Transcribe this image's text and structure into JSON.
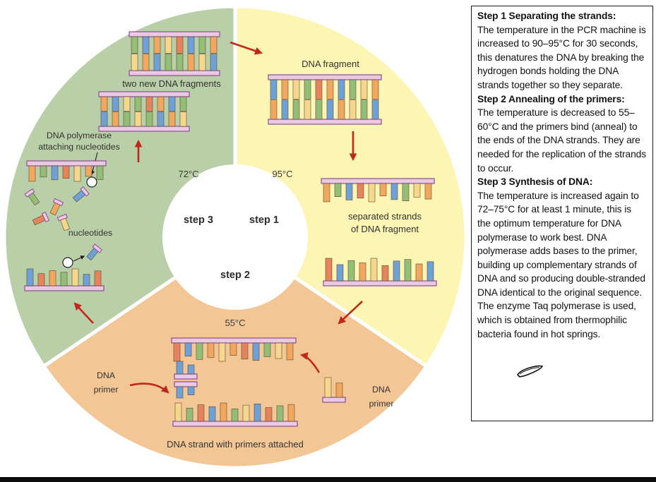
{
  "diagram": {
    "steps": {
      "step1": "step 1",
      "step2": "step 2",
      "step3": "step 3"
    },
    "temps": {
      "t95": "95°C",
      "t72": "72°C",
      "t55": "55°C"
    },
    "labels": {
      "dna_fragment": "DNA fragment",
      "separated_line1": "separated strands",
      "separated_line2": "of DNA fragment",
      "two_new_fragments": "two new DNA fragments",
      "polymerase_line1": "DNA polymerase",
      "polymerase_line2": "attaching nucleotides",
      "nucleotides": "nucleotides",
      "primer_left_line1": "DNA",
      "primer_left_line2": "primer",
      "primer_right_line1": "DNA",
      "primer_right_line2": "primer",
      "strand_with_primers": "DNA strand with primers attached"
    },
    "colors": {
      "green_sector": "#b9cfa8",
      "yellow_sector": "#fcf5b4",
      "tan_sector": "#f2c795",
      "arrow_red": "#c2271b",
      "rail_fill": "#eac9e3",
      "rail_border": "#8e4f90",
      "panel_border": "#1a1a1a"
    },
    "base_colors": {
      "b": "#6fa1d9",
      "o": "#f2a75f",
      "g": "#93be78",
      "y": "#f5d88c",
      "r": "#e5845c"
    }
  },
  "panel": {
    "sections": [
      {
        "heading": "Step 1 Separating the strands:",
        "body": "The temperature in the PCR machine is increased to 90–95°C for 30 seconds, this denatures the DNA by breaking the hydrogen bonds holding the DNA strands together so they separate."
      },
      {
        "heading": "Step 2 Annealing of the primers:",
        "body": "The temperature is decreased to 55–60°C and the primers bind (anneal) to the ends of the DNA strands. They are needed for the replication of the strands to occur."
      },
      {
        "heading": "Step 3 Synthesis of DNA:",
        "body": "The temperature is increased again to 72–75°C for at least 1 minute, this is the optimum temperature for DNA polymerase to work best. DNA polymerase adds bases to the primer, building up complementary strands of DNA and so producing double-stranded DNA identical to the original sequence. The enzyme Taq polymerase is used, which is obtained from thermophilic bacteria found in hot springs."
      }
    ]
  }
}
